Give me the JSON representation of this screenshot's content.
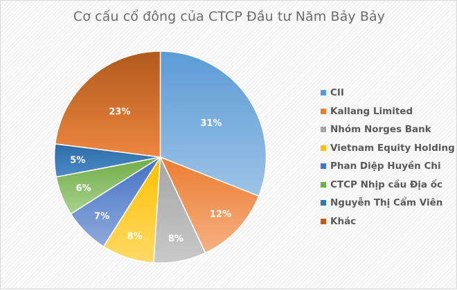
{
  "chart_data": {
    "type": "pie",
    "title": "Cơ cấu cổ đông của CTCP Đầu tư Năm Bảy Bảy",
    "start_angle_deg": -90,
    "direction": "clockwise",
    "categories": [
      "CII",
      "Kallang Limited",
      "Nhóm Norges Bank",
      "Vietnam Equity Holding",
      "Phan Diệp Huyền Chi",
      "CTCP Nhịp cầu Địa ốc",
      "Nguyễn Thị Cẩm Viên",
      "Khác"
    ],
    "values": [
      31,
      12,
      8,
      8,
      7,
      6,
      5,
      23
    ],
    "labels": [
      "31%",
      "12%",
      "8%",
      "8%",
      "7%",
      "6%",
      "5%",
      "23%"
    ],
    "colors": [
      "#7eaedc",
      "#ef9a63",
      "#b7b7b7",
      "#ffcb3a",
      "#6f8fd0",
      "#86bd63",
      "#3b79b4",
      "#d5722f"
    ],
    "gradient_light": [
      "#9dc3e6",
      "#f4b183",
      "#c9c9c9",
      "#ffd966",
      "#8faadc",
      "#a9d18e",
      "#4a8ac6",
      "#ed8641"
    ],
    "gradient_dark": [
      "#5b9bd5",
      "#ed7d31",
      "#a5a5a5",
      "#ffc000",
      "#4472c4",
      "#70ad47",
      "#2e6ca8",
      "#b05a1c"
    ],
    "legend_position": "right",
    "unit": "%"
  },
  "legend": {
    "items": [
      {
        "label": "CII",
        "color": "#5b9bd5"
      },
      {
        "label": "Kallang Limited",
        "color": "#ed7d31"
      },
      {
        "label": "Nhóm Norges Bank",
        "color": "#a5a5a5"
      },
      {
        "label": "Vietnam Equity Holding",
        "color": "#ffc000"
      },
      {
        "label": "Phan Diệp Huyền Chi",
        "color": "#4472c4"
      },
      {
        "label": "CTCP Nhịp cầu Địa ốc",
        "color": "#70ad47"
      },
      {
        "label": "Nguyễn Thị Cẩm Viên",
        "color": "#2e75b6"
      },
      {
        "label": "Khác",
        "color": "#c55a11"
      }
    ]
  }
}
